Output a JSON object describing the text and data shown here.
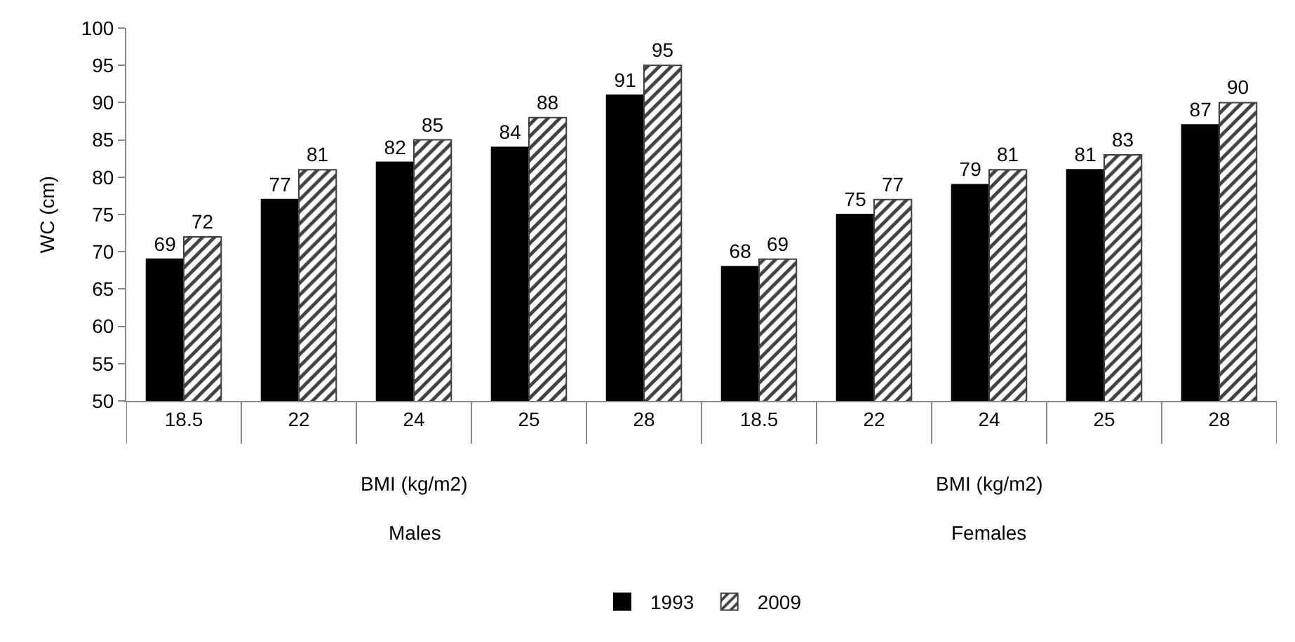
{
  "chart_data": {
    "type": "bar",
    "ylabel": "WC (cm)",
    "categories": [
      "18.5",
      "22",
      "24",
      "25",
      "28",
      "18.5",
      "22",
      "24",
      "25",
      "28"
    ],
    "series": [
      {
        "name": "1993",
        "color": "#000000",
        "values": [
          69,
          77,
          82,
          84,
          91,
          68,
          75,
          79,
          81,
          87
        ]
      },
      {
        "name": "2009",
        "color": "#404040",
        "values": [
          72,
          81,
          85,
          88,
          95,
          69,
          77,
          81,
          83,
          90
        ]
      }
    ],
    "ylim": [
      50,
      100
    ],
    "yticks": [
      50,
      55,
      60,
      65,
      70,
      75,
      80,
      85,
      90,
      95,
      100
    ],
    "data_labels": true,
    "legend": "bottom",
    "annotations": [
      "BMI (kg/m2)",
      "Males",
      "BMI (kg/m2)",
      "Females"
    ]
  }
}
